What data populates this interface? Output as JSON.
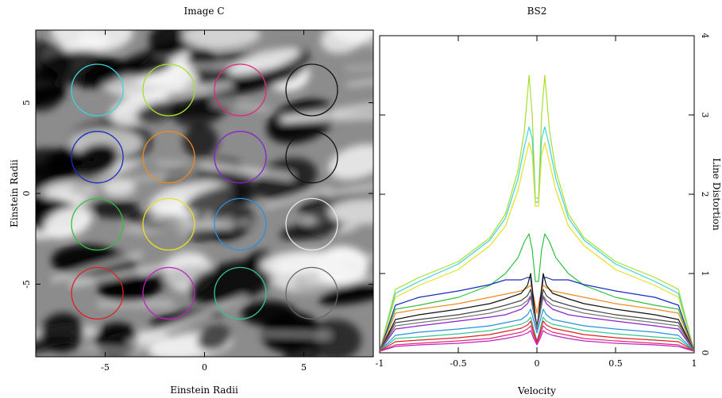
{
  "chart_data": [
    {
      "type": "heatmap",
      "title": "Image C",
      "xlabel": "Einstein Radii",
      "ylabel": "Einstein Radii",
      "xlim": [
        -8.5,
        8.5
      ],
      "ylim": [
        -9,
        9
      ],
      "xticks": [
        -5,
        0,
        5
      ],
      "xtick_labels": [
        "-5",
        "0",
        "5"
      ],
      "yticks": [
        -5,
        0,
        5
      ],
      "ytick_labels": [
        "-5",
        "0",
        "5"
      ],
      "colormap": "grayscale",
      "circles": [
        {
          "x": -5.4,
          "y": 5.7,
          "color": "#38d4dc"
        },
        {
          "x": -1.8,
          "y": 5.7,
          "color": "#a6e02c"
        },
        {
          "x": 1.8,
          "y": 5.7,
          "color": "#e0287a"
        },
        {
          "x": 5.4,
          "y": 5.7,
          "color": "#111111"
        },
        {
          "x": -5.4,
          "y": 2.0,
          "color": "#1a2cc0"
        },
        {
          "x": -1.8,
          "y": 2.0,
          "color": "#f08a20"
        },
        {
          "x": 1.8,
          "y": 2.0,
          "color": "#8a20d0"
        },
        {
          "x": 5.4,
          "y": 2.0,
          "color": "#111111"
        },
        {
          "x": -5.4,
          "y": -1.7,
          "color": "#30c040"
        },
        {
          "x": -1.8,
          "y": -1.7,
          "color": "#e8e020"
        },
        {
          "x": 1.8,
          "y": -1.7,
          "color": "#2890e0"
        },
        {
          "x": 5.4,
          "y": -1.7,
          "color": "#e8e8e8"
        },
        {
          "x": -5.4,
          "y": -5.5,
          "color": "#e02020"
        },
        {
          "x": -1.8,
          "y": -5.5,
          "color": "#c020c0"
        },
        {
          "x": 1.8,
          "y": -5.5,
          "color": "#30c890"
        },
        {
          "x": 5.4,
          "y": -5.5,
          "color": "#666666"
        }
      ]
    },
    {
      "type": "line",
      "title": "BS2",
      "xlabel": "Velocity",
      "ylabel": "Line Distortion",
      "xlim": [
        -1,
        1
      ],
      "ylim": [
        0,
        4
      ],
      "xticks": [
        -1,
        -0.5,
        0,
        0.5,
        1
      ],
      "xtick_labels": [
        "-1",
        "-0.5",
        "0",
        "0.5",
        "1"
      ],
      "yticks": [
        0,
        1,
        2,
        3,
        4
      ],
      "ytick_labels": [
        "0",
        "1",
        "2",
        "3",
        "4"
      ],
      "y_axis_side": "right",
      "series": [
        {
          "color": "#a6e02c",
          "x": [
            -1,
            -0.9,
            -0.75,
            -0.5,
            -0.3,
            -0.2,
            -0.12,
            -0.08,
            -0.05,
            -0.03,
            -0.01,
            0.01,
            0.03,
            0.05,
            0.08,
            0.12,
            0.2,
            0.3,
            0.5,
            0.75,
            0.9,
            1
          ],
          "y": [
            0.02,
            0.8,
            0.95,
            1.15,
            1.45,
            1.75,
            2.3,
            2.8,
            3.5,
            3.0,
            1.95,
            1.95,
            3.0,
            3.5,
            2.8,
            2.3,
            1.75,
            1.45,
            1.15,
            0.95,
            0.8,
            0.02
          ]
        },
        {
          "color": "#38d4dc",
          "x": [
            -1,
            -0.9,
            -0.75,
            -0.5,
            -0.3,
            -0.2,
            -0.12,
            -0.08,
            -0.05,
            -0.03,
            -0.01,
            0.01,
            0.03,
            0.05,
            0.08,
            0.12,
            0.2,
            0.3,
            0.5,
            0.75,
            0.9,
            1
          ],
          "y": [
            0.02,
            0.75,
            0.9,
            1.12,
            1.42,
            1.7,
            2.2,
            2.6,
            2.85,
            2.7,
            1.9,
            1.9,
            2.7,
            2.85,
            2.6,
            2.2,
            1.7,
            1.42,
            1.12,
            0.9,
            0.75,
            0.02
          ]
        },
        {
          "color": "#e8e020",
          "x": [
            -1,
            -0.9,
            -0.75,
            -0.5,
            -0.3,
            -0.2,
            -0.12,
            -0.08,
            -0.05,
            -0.03,
            -0.01,
            0.01,
            0.03,
            0.05,
            0.08,
            0.12,
            0.2,
            0.3,
            0.5,
            0.75,
            0.9,
            1
          ],
          "y": [
            0.02,
            0.7,
            0.85,
            1.05,
            1.35,
            1.6,
            2.05,
            2.4,
            2.65,
            2.5,
            1.85,
            1.85,
            2.5,
            2.65,
            2.4,
            2.05,
            1.6,
            1.35,
            1.05,
            0.85,
            0.7,
            0.02
          ]
        },
        {
          "color": "#30c040",
          "x": [
            -1,
            -0.9,
            -0.75,
            -0.5,
            -0.3,
            -0.2,
            -0.12,
            -0.08,
            -0.05,
            -0.03,
            -0.01,
            0.01,
            0.03,
            0.05,
            0.08,
            0.12,
            0.2,
            0.3,
            0.5,
            0.75,
            0.9,
            1
          ],
          "y": [
            0.02,
            0.55,
            0.6,
            0.7,
            0.85,
            1.0,
            1.2,
            1.4,
            1.5,
            1.3,
            0.9,
            0.9,
            1.3,
            1.5,
            1.4,
            1.2,
            1.0,
            0.85,
            0.7,
            0.6,
            0.55,
            0.02
          ]
        },
        {
          "color": "#1a2cc0",
          "x": [
            -1,
            -0.9,
            -0.75,
            -0.5,
            -0.3,
            -0.2,
            -0.1,
            -0.06,
            -0.04,
            -0.02,
            0.0,
            0.02,
            0.04,
            0.06,
            0.1,
            0.2,
            0.3,
            0.5,
            0.75,
            0.9,
            1
          ],
          "y": [
            0.02,
            0.6,
            0.7,
            0.78,
            0.86,
            0.92,
            0.92,
            0.95,
            0.95,
            0.55,
            0.3,
            0.55,
            0.95,
            0.95,
            0.92,
            0.92,
            0.86,
            0.78,
            0.7,
            0.6,
            0.02
          ]
        },
        {
          "color": "#f08a20",
          "x": [
            -1,
            -0.9,
            -0.75,
            -0.5,
            -0.3,
            -0.2,
            -0.1,
            -0.06,
            -0.04,
            -0.02,
            0.0,
            0.02,
            0.04,
            0.06,
            0.1,
            0.2,
            0.3,
            0.5,
            0.75,
            0.9,
            1
          ],
          "y": [
            0.02,
            0.5,
            0.55,
            0.62,
            0.7,
            0.74,
            0.78,
            0.82,
            0.85,
            0.7,
            0.5,
            0.7,
            0.85,
            0.82,
            0.78,
            0.74,
            0.7,
            0.62,
            0.55,
            0.5,
            0.02
          ]
        },
        {
          "color": "#111111",
          "x": [
            -1,
            -0.9,
            -0.75,
            -0.5,
            -0.3,
            -0.2,
            -0.1,
            -0.06,
            -0.04,
            -0.02,
            0.0,
            0.02,
            0.04,
            0.06,
            0.1,
            0.2,
            0.3,
            0.5,
            0.75,
            0.9,
            1
          ],
          "y": [
            0.02,
            0.42,
            0.48,
            0.55,
            0.62,
            0.68,
            0.75,
            0.85,
            1.0,
            0.65,
            0.3,
            0.65,
            1.0,
            0.85,
            0.75,
            0.68,
            0.62,
            0.55,
            0.48,
            0.42,
            0.02
          ]
        },
        {
          "color": "#444444",
          "x": [
            -1,
            -0.9,
            -0.75,
            -0.5,
            -0.3,
            -0.2,
            -0.1,
            -0.06,
            -0.04,
            -0.02,
            0.0,
            0.02,
            0.04,
            0.06,
            0.1,
            0.2,
            0.3,
            0.5,
            0.75,
            0.9,
            1
          ],
          "y": [
            0.02,
            0.38,
            0.42,
            0.48,
            0.55,
            0.6,
            0.66,
            0.72,
            0.8,
            0.55,
            0.35,
            0.55,
            0.8,
            0.72,
            0.66,
            0.6,
            0.55,
            0.48,
            0.42,
            0.38,
            0.02
          ]
        },
        {
          "color": "#8a20d0",
          "x": [
            -1,
            -0.9,
            -0.75,
            -0.5,
            -0.3,
            -0.2,
            -0.1,
            -0.06,
            -0.04,
            -0.02,
            0.0,
            0.02,
            0.04,
            0.06,
            0.1,
            0.2,
            0.3,
            0.5,
            0.75,
            0.9,
            1
          ],
          "y": [
            0.02,
            0.3,
            0.34,
            0.4,
            0.45,
            0.48,
            0.55,
            0.62,
            0.7,
            0.5,
            0.3,
            0.5,
            0.7,
            0.62,
            0.55,
            0.48,
            0.45,
            0.4,
            0.34,
            0.3,
            0.02
          ]
        },
        {
          "color": "#2890e0",
          "x": [
            -1,
            -0.9,
            -0.75,
            -0.5,
            -0.3,
            -0.2,
            -0.1,
            -0.06,
            -0.04,
            -0.02,
            0.0,
            0.02,
            0.04,
            0.06,
            0.1,
            0.2,
            0.3,
            0.5,
            0.75,
            0.9,
            1
          ],
          "y": [
            0.02,
            0.22,
            0.26,
            0.3,
            0.34,
            0.38,
            0.42,
            0.48,
            0.55,
            0.4,
            0.25,
            0.4,
            0.55,
            0.48,
            0.42,
            0.38,
            0.34,
            0.3,
            0.26,
            0.22,
            0.02
          ]
        },
        {
          "color": "#30c890",
          "x": [
            -1,
            -0.9,
            -0.75,
            -0.5,
            -0.3,
            -0.2,
            -0.1,
            -0.06,
            -0.04,
            -0.02,
            0.0,
            0.02,
            0.04,
            0.06,
            0.1,
            0.2,
            0.3,
            0.5,
            0.75,
            0.9,
            1
          ],
          "y": [
            0.02,
            0.18,
            0.2,
            0.24,
            0.28,
            0.32,
            0.36,
            0.4,
            0.45,
            0.3,
            0.15,
            0.3,
            0.45,
            0.4,
            0.36,
            0.32,
            0.28,
            0.24,
            0.2,
            0.18,
            0.02
          ]
        },
        {
          "color": "#e0287a",
          "x": [
            -1,
            -0.9,
            -0.75,
            -0.5,
            -0.3,
            -0.2,
            -0.1,
            -0.06,
            -0.04,
            -0.02,
            0.0,
            0.02,
            0.04,
            0.06,
            0.1,
            0.2,
            0.3,
            0.5,
            0.75,
            0.9,
            1
          ],
          "y": [
            0.02,
            0.1,
            0.12,
            0.15,
            0.18,
            0.22,
            0.26,
            0.3,
            0.34,
            0.22,
            0.12,
            0.22,
            0.34,
            0.3,
            0.26,
            0.22,
            0.18,
            0.15,
            0.12,
            0.1,
            0.02
          ]
        },
        {
          "color": "#c020c0",
          "x": [
            -1,
            -0.9,
            -0.75,
            -0.5,
            -0.3,
            -0.2,
            -0.1,
            -0.06,
            -0.04,
            -0.02,
            0.0,
            0.02,
            0.04,
            0.06,
            0.1,
            0.2,
            0.3,
            0.5,
            0.75,
            0.9,
            1
          ],
          "y": [
            0.02,
            0.08,
            0.1,
            0.12,
            0.15,
            0.18,
            0.22,
            0.25,
            0.28,
            0.18,
            0.1,
            0.18,
            0.28,
            0.25,
            0.22,
            0.18,
            0.15,
            0.12,
            0.1,
            0.08,
            0.02
          ]
        },
        {
          "color": "#e02020",
          "x": [
            -1,
            -0.9,
            -0.75,
            -0.5,
            -0.3,
            -0.2,
            -0.1,
            -0.06,
            -0.04,
            -0.02,
            0.0,
            0.02,
            0.04,
            0.06,
            0.1,
            0.2,
            0.3,
            0.5,
            0.75,
            0.9,
            1
          ],
          "y": [
            0.02,
            0.14,
            0.16,
            0.19,
            0.23,
            0.27,
            0.31,
            0.35,
            0.4,
            0.26,
            0.14,
            0.26,
            0.4,
            0.35,
            0.31,
            0.27,
            0.23,
            0.19,
            0.16,
            0.14,
            0.02
          ]
        },
        {
          "color": "#777777",
          "x": [
            -1,
            -0.9,
            -0.75,
            -0.5,
            -0.3,
            -0.2,
            -0.1,
            -0.06,
            -0.04,
            -0.02,
            0.0,
            0.02,
            0.04,
            0.06,
            0.1,
            0.2,
            0.3,
            0.5,
            0.75,
            0.9,
            1
          ],
          "y": [
            0.02,
            0.34,
            0.38,
            0.44,
            0.5,
            0.55,
            0.6,
            0.66,
            0.72,
            0.5,
            0.3,
            0.5,
            0.72,
            0.66,
            0.6,
            0.55,
            0.5,
            0.44,
            0.38,
            0.34,
            0.02
          ]
        }
      ]
    }
  ]
}
